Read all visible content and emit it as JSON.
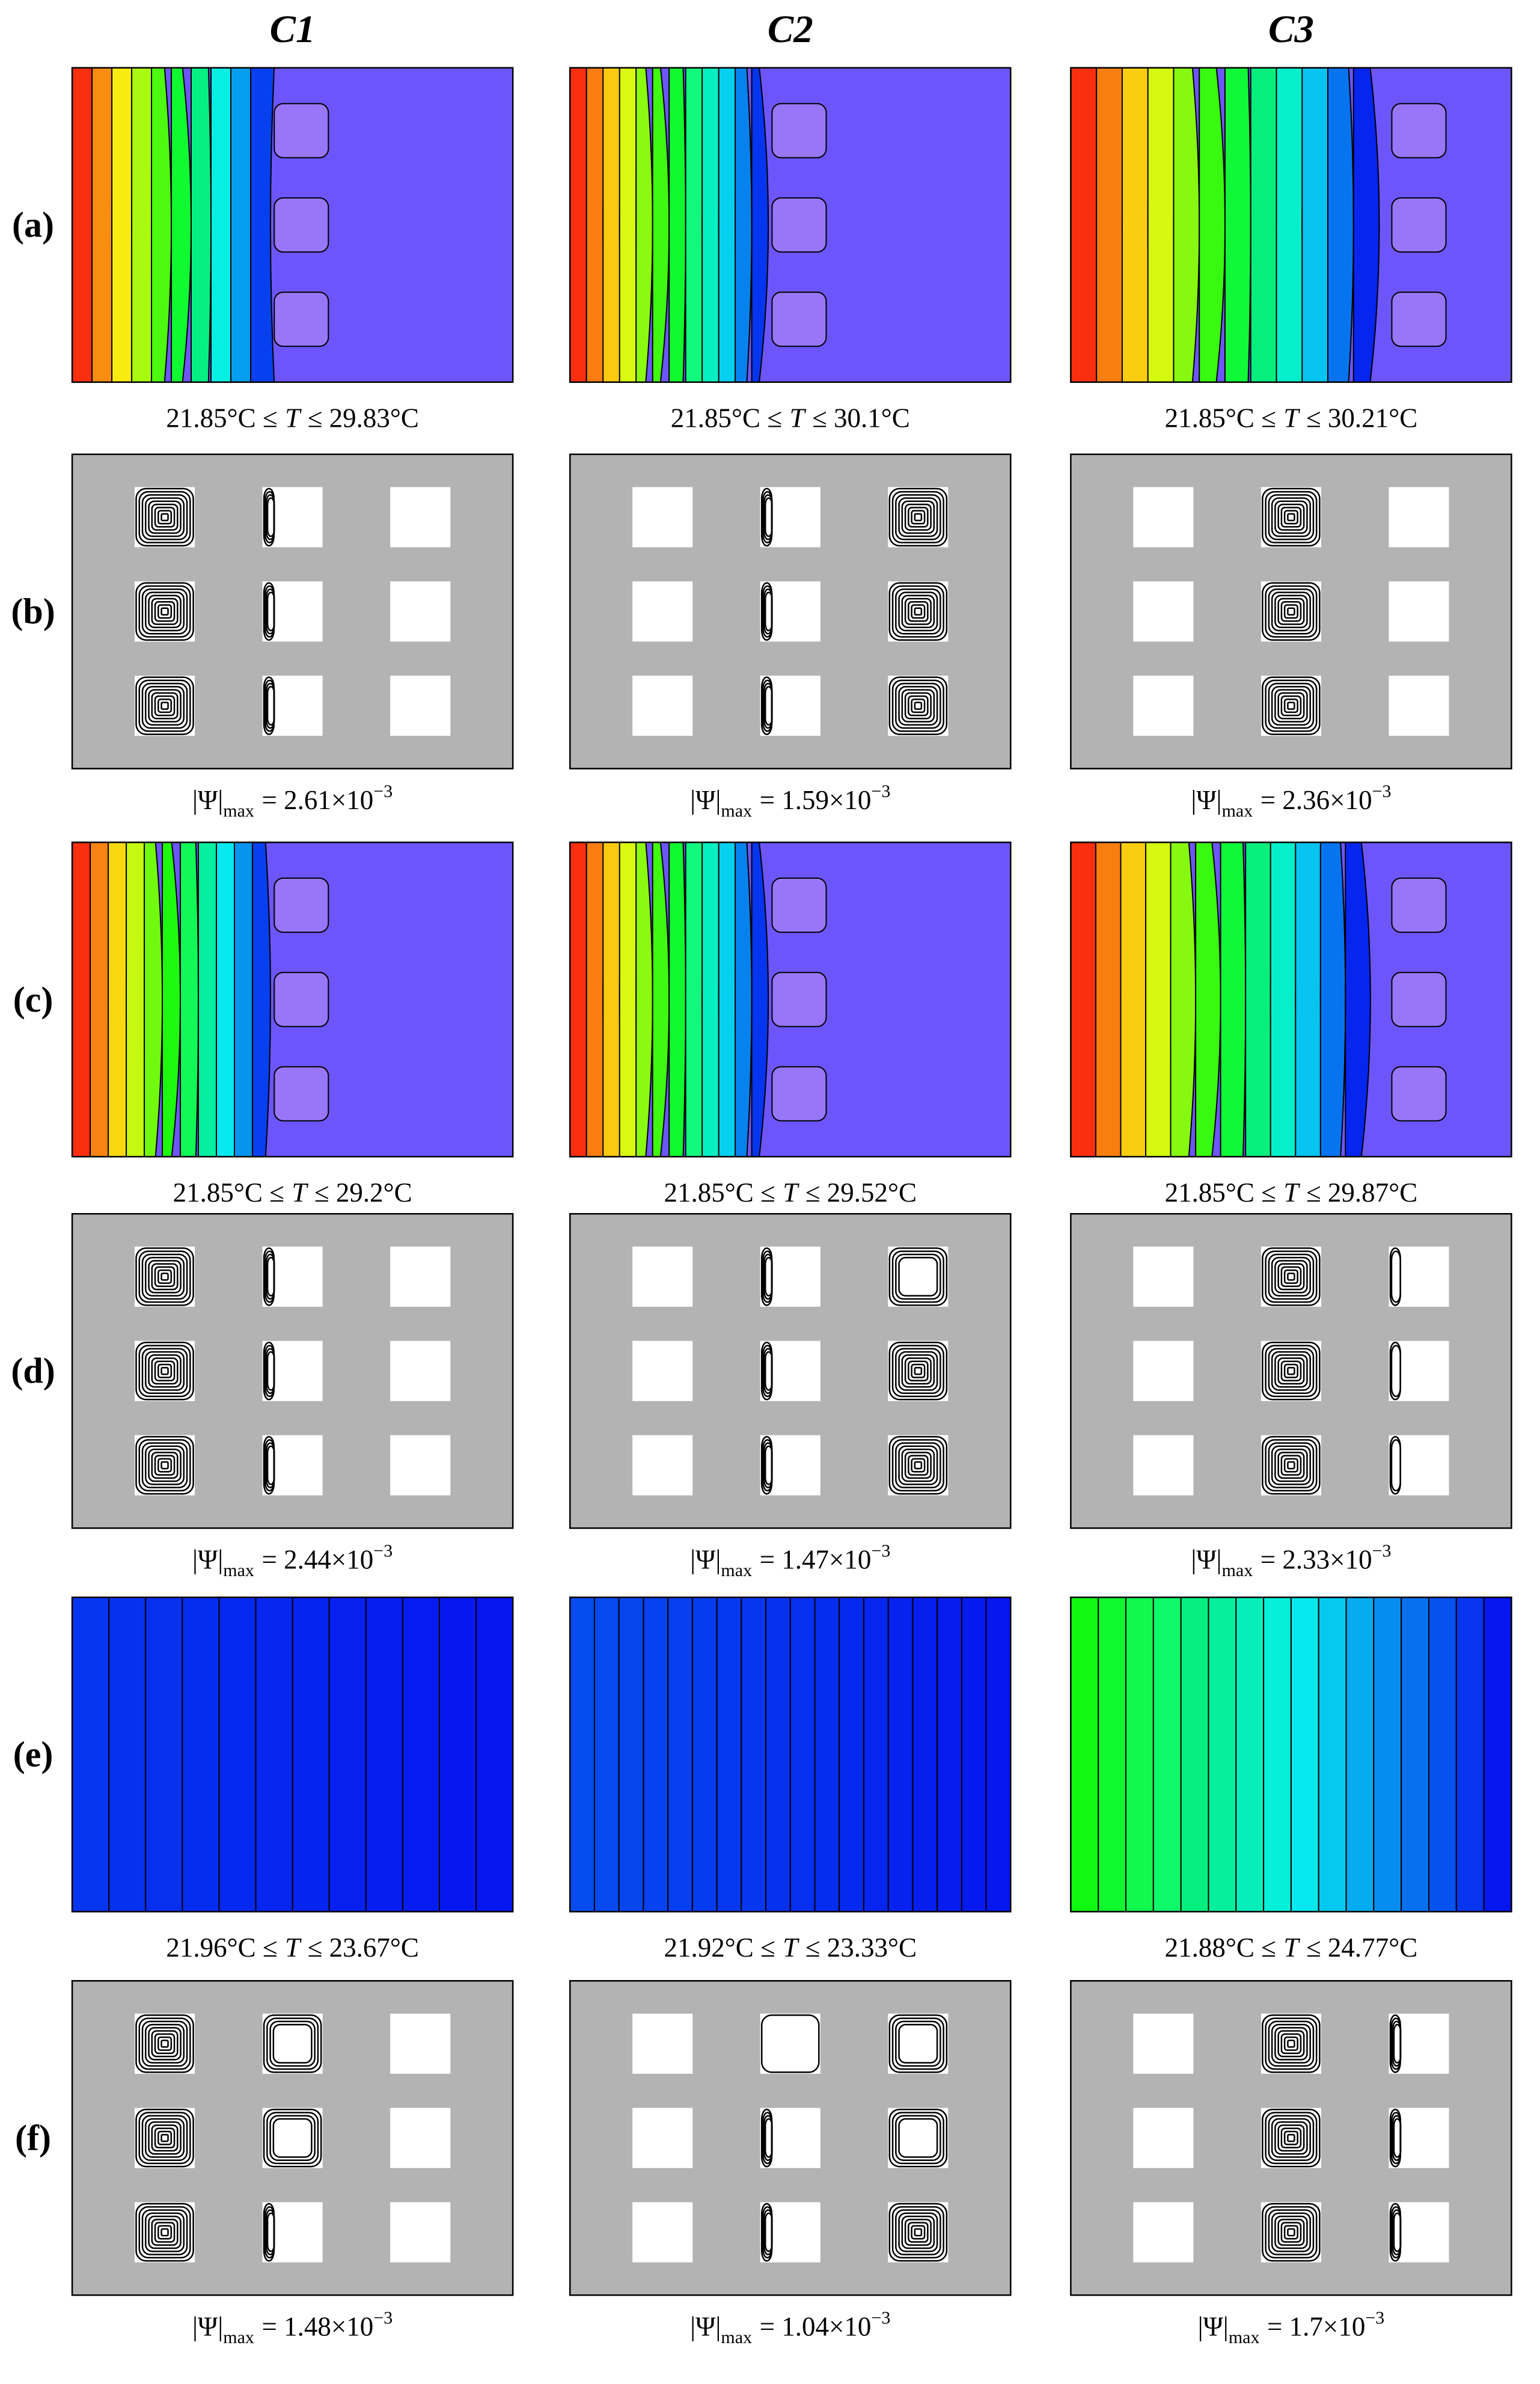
{
  "column_headers": [
    "C1",
    "C2",
    "C3"
  ],
  "rows": [
    {
      "label": "(a)",
      "captions": [
        {
          "lower": "21.85°C ≤",
          "variable": "T",
          "upper": "≤ 29.83°C"
        },
        {
          "lower": "21.85°C ≤",
          "variable": "T",
          "upper": "≤ 30.1°C"
        },
        {
          "lower": "21.85°C ≤",
          "variable": "T",
          "upper": "≤ 30.21°C"
        }
      ]
    },
    {
      "label": "(b)",
      "captions": [
        {
          "symbol": "|Ψ|",
          "subscript": "max",
          "relation": "= 2.61×10",
          "exponent": "−3"
        },
        {
          "symbol": "|Ψ|",
          "subscript": "max",
          "relation": "= 1.59×10",
          "exponent": "−3"
        },
        {
          "symbol": "|Ψ|",
          "subscript": "max",
          "relation": "= 2.36×10",
          "exponent": "−3"
        }
      ]
    },
    {
      "label": "(c)",
      "captions": [
        {
          "lower": "21.85°C ≤",
          "variable": "T",
          "upper": "≤ 29.2°C"
        },
        {
          "lower": "21.85°C ≤",
          "variable": "T",
          "upper": "≤ 29.52°C"
        },
        {
          "lower": "21.85°C ≤",
          "variable": "T",
          "upper": "≤ 29.87°C"
        }
      ]
    },
    {
      "label": "(d)",
      "captions": [
        {
          "symbol": "|Ψ|",
          "subscript": "max",
          "relation": "= 2.44×10",
          "exponent": "−3"
        },
        {
          "symbol": "|Ψ|",
          "subscript": "max",
          "relation": "= 1.47×10",
          "exponent": "−3"
        },
        {
          "symbol": "|Ψ|",
          "subscript": "max",
          "relation": "= 2.33×10",
          "exponent": "−3"
        }
      ]
    },
    {
      "label": "(e)",
      "captions": [
        {
          "lower": "21.96°C ≤",
          "variable": "T",
          "upper": "≤ 23.67°C"
        },
        {
          "lower": "21.92°C ≤",
          "variable": "T",
          "upper": "≤ 23.33°C"
        },
        {
          "lower": "21.88°C ≤",
          "variable": "T",
          "upper": "≤ 24.77°C"
        }
      ]
    },
    {
      "label": "(f)",
      "captions": [
        {
          "symbol": "|Ψ|",
          "subscript": "max",
          "relation": "= 1.48×10",
          "exponent": "−3"
        },
        {
          "symbol": "|Ψ|",
          "subscript": "max",
          "relation": "= 1.04×10",
          "exponent": "−3"
        },
        {
          "symbol": "|Ψ|",
          "subscript": "max",
          "relation": "= 1.7×10",
          "exponent": "−3"
        }
      ]
    }
  ]
}
